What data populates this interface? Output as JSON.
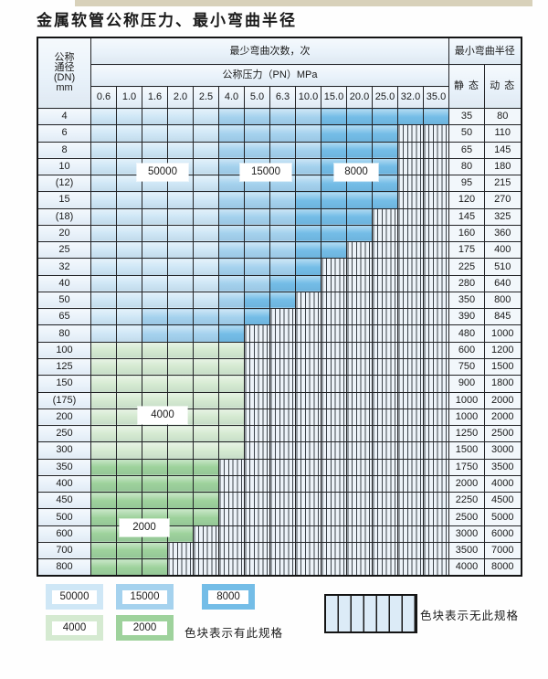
{
  "page": {
    "title": "金属软管公称压力、最小弯曲半径"
  },
  "colors": {
    "blue_50000": "#cfe7f6",
    "blue_15000": "#a5d2ee",
    "blue_8000": "#74bde7",
    "green_4000": "#d5ead1",
    "green_2000": "#9ed29c",
    "striped_bg": "#edf3f9",
    "header_bg": "#e9f2fa"
  },
  "table": {
    "corner_lines": [
      "公称",
      "通径",
      "(DN)",
      "mm"
    ],
    "bend_times_header": "最少弯曲次数，次",
    "pressure_header": "公称压力（PN）MPa",
    "radius_header": "最小弯曲半径",
    "static_label": "静 态",
    "dynamic_label": "动 态",
    "pressure_columns": [
      "0.6",
      "1.0",
      "1.6",
      "2.0",
      "2.5",
      "4.0",
      "5.0",
      "6.3",
      "10.0",
      "15.0",
      "20.0",
      "25.0",
      "32.0",
      "35.0"
    ],
    "cell_legend": "L=50000 cycles, M=15000, D=8000, A=4000, B=2000, X=no spec (striped)",
    "rows": [
      {
        "dn": "4",
        "cells": "LLLLLMMMMDDDDD",
        "static": "35",
        "dynamic": "80"
      },
      {
        "dn": "6",
        "cells": "LLLLLMMMMDDDXX",
        "static": "50",
        "dynamic": "110"
      },
      {
        "dn": "8",
        "cells": "LLLLLMMMMDDDXX",
        "static": "65",
        "dynamic": "145"
      },
      {
        "dn": "10",
        "cells": "LLLLLMMMMDDDXX",
        "static": "80",
        "dynamic": "180"
      },
      {
        "dn": "(12)",
        "cells": "LLLLLMMMMDDDXX",
        "static": "95",
        "dynamic": "215"
      },
      {
        "dn": "15",
        "cells": "LLLLLMMMDDDDXX",
        "static": "120",
        "dynamic": "270"
      },
      {
        "dn": "(18)",
        "cells": "LLLLLMMMDDDXXX",
        "static": "145",
        "dynamic": "325"
      },
      {
        "dn": "20",
        "cells": "LLLLLMMMDDDXXX",
        "static": "160",
        "dynamic": "360"
      },
      {
        "dn": "25",
        "cells": "LLLLLMMMDDXXXX",
        "static": "175",
        "dynamic": "400"
      },
      {
        "dn": "32",
        "cells": "LLLLLMMMDXXXXX",
        "static": "225",
        "dynamic": "510"
      },
      {
        "dn": "40",
        "cells": "LLLLLMMDDXXXXX",
        "static": "280",
        "dynamic": "640"
      },
      {
        "dn": "50",
        "cells": "LLLLLMDDXXXXXX",
        "static": "350",
        "dynamic": "800"
      },
      {
        "dn": "65",
        "cells": "LLMMMMDXXXXXXX",
        "static": "390",
        "dynamic": "845"
      },
      {
        "dn": "80",
        "cells": "LLMMMDXXXXXXXX",
        "static": "480",
        "dynamic": "1000"
      },
      {
        "dn": "100",
        "cells": "AAAAAAXXXXXXXX",
        "static": "600",
        "dynamic": "1200"
      },
      {
        "dn": "125",
        "cells": "AAAAAAXXXXXXXX",
        "static": "750",
        "dynamic": "1500"
      },
      {
        "dn": "150",
        "cells": "AAAAAAXXXXXXXX",
        "static": "900",
        "dynamic": "1800"
      },
      {
        "dn": "(175)",
        "cells": "AAAAAAXXXXXXXX",
        "static": "1000",
        "dynamic": "2000"
      },
      {
        "dn": "200",
        "cells": "AAAAAAXXXXXXXX",
        "static": "1000",
        "dynamic": "2000"
      },
      {
        "dn": "250",
        "cells": "AAAAAAXXXXXXXX",
        "static": "1250",
        "dynamic": "2500"
      },
      {
        "dn": "300",
        "cells": "AAAAAAXXXXXXXX",
        "static": "1500",
        "dynamic": "3000"
      },
      {
        "dn": "350",
        "cells": "BBBBBXXXXXXXXX",
        "static": "1750",
        "dynamic": "3500"
      },
      {
        "dn": "400",
        "cells": "BBBBBXXXXXXXXX",
        "static": "2000",
        "dynamic": "4000"
      },
      {
        "dn": "450",
        "cells": "BBBBBXXXXXXXXX",
        "static": "2250",
        "dynamic": "4500"
      },
      {
        "dn": "500",
        "cells": "BBBBBXXXXXXXXX",
        "static": "2500",
        "dynamic": "5000"
      },
      {
        "dn": "600",
        "cells": "BBBBXXXXXXXXXX",
        "static": "3000",
        "dynamic": "6000"
      },
      {
        "dn": "700",
        "cells": "BBBXXXXXXXXXXX",
        "static": "3500",
        "dynamic": "7000"
      },
      {
        "dn": "800",
        "cells": "BBBXXXXXXXXXXX",
        "static": "4000",
        "dynamic": "8000"
      }
    ],
    "cycle_labels": [
      {
        "text": "50000"
      },
      {
        "text": "15000"
      },
      {
        "text": "8000"
      },
      {
        "text": "4000"
      },
      {
        "text": "2000"
      }
    ]
  },
  "legend": {
    "swatches": [
      {
        "value": "50000",
        "shade": "blue_50000"
      },
      {
        "value": "15000",
        "shade": "blue_15000"
      },
      {
        "value": "8000",
        "shade": "blue_8000"
      },
      {
        "value": "4000",
        "shade": "green_4000"
      },
      {
        "value": "2000",
        "shade": "green_2000"
      }
    ],
    "has_spec_note": "色块表示有此规格",
    "no_spec_note": "色块表示无此规格"
  }
}
